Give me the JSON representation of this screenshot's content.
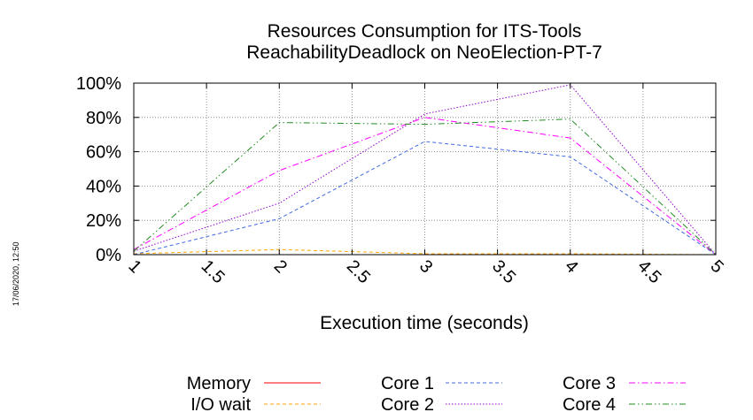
{
  "stamp": "17/06/2020, 12:50",
  "chart_data": {
    "type": "line",
    "title": [
      "Resources Consumption for ITS-Tools",
      "ReachabilityDeadlock on NeoElection-PT-7"
    ],
    "xlabel": "Execution time (seconds)",
    "ylabel": "",
    "xlim": [
      1,
      5
    ],
    "ylim": [
      0,
      100
    ],
    "x_ticks": [
      "1",
      "1.5",
      "2",
      "2.5",
      "3",
      "3.5",
      "4",
      "4.5",
      "5"
    ],
    "y_ticks": [
      "0%",
      "20%",
      "40%",
      "60%",
      "80%",
      "100%"
    ],
    "grid": true,
    "legend_position": "bottom",
    "series": [
      {
        "name": "Memory",
        "color": "#ff0000",
        "dash": "solid",
        "x": [
          1,
          2,
          3,
          4,
          5
        ],
        "values": [
          0,
          0,
          0,
          0,
          0
        ]
      },
      {
        "name": "I/O wait",
        "color": "#ffa500",
        "dash": "dashed",
        "x": [
          1,
          2,
          3,
          4,
          5
        ],
        "values": [
          0.5,
          3,
          0.5,
          0.5,
          0
        ]
      },
      {
        "name": "Core 1",
        "color": "#4169e1",
        "dash": "dashed",
        "x": [
          1,
          2,
          3,
          4,
          5
        ],
        "values": [
          0,
          21,
          66,
          57,
          0
        ]
      },
      {
        "name": "Core 2",
        "color": "#9400d3",
        "dash": "dotted",
        "x": [
          1,
          2,
          3,
          4,
          5
        ],
        "values": [
          2,
          30,
          82,
          99,
          0
        ]
      },
      {
        "name": "Core 3",
        "color": "#ff00ff",
        "dash": "dashdot",
        "x": [
          1,
          2,
          3,
          4,
          5
        ],
        "values": [
          3,
          49,
          80,
          68,
          0
        ]
      },
      {
        "name": "Core 4",
        "color": "#228b22",
        "dash": "dashdotdot",
        "x": [
          1,
          2,
          3,
          4,
          5
        ],
        "values": [
          2,
          77,
          76,
          79,
          0
        ]
      }
    ]
  }
}
